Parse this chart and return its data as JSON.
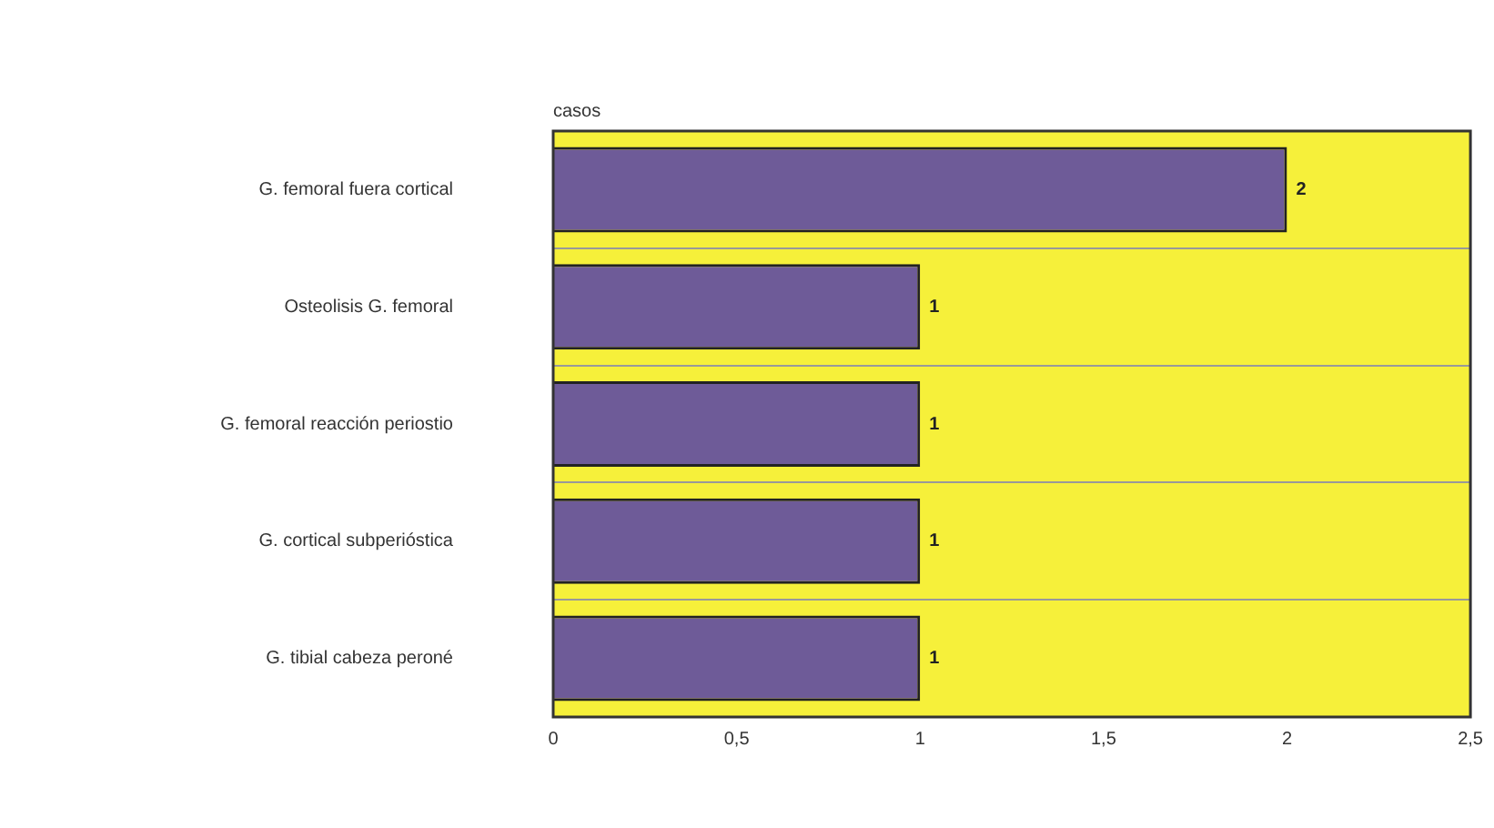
{
  "chart_data": {
    "type": "bar",
    "orientation": "horizontal",
    "xlabel": "casos",
    "categories": [
      "G. femoral fuera cortical",
      "Osteolisis G. femoral",
      "G. femoral reacción periostio",
      "G. cortical subperióstica",
      "G. tibial cabeza peroné"
    ],
    "values": [
      2,
      1,
      1,
      1,
      1
    ],
    "color": "#6e5b98",
    "xlim": [
      0,
      2.5
    ],
    "xticks": [
      0,
      {
        "value": 0.5,
        "label": "0,5"
      },
      1,
      {
        "value": 1.5,
        "label": "1,5"
      },
      2,
      {
        "value": 2.5,
        "label": "2,5"
      }
    ],
    "grid": "y",
    "legend": false,
    "data_labels": true
  }
}
